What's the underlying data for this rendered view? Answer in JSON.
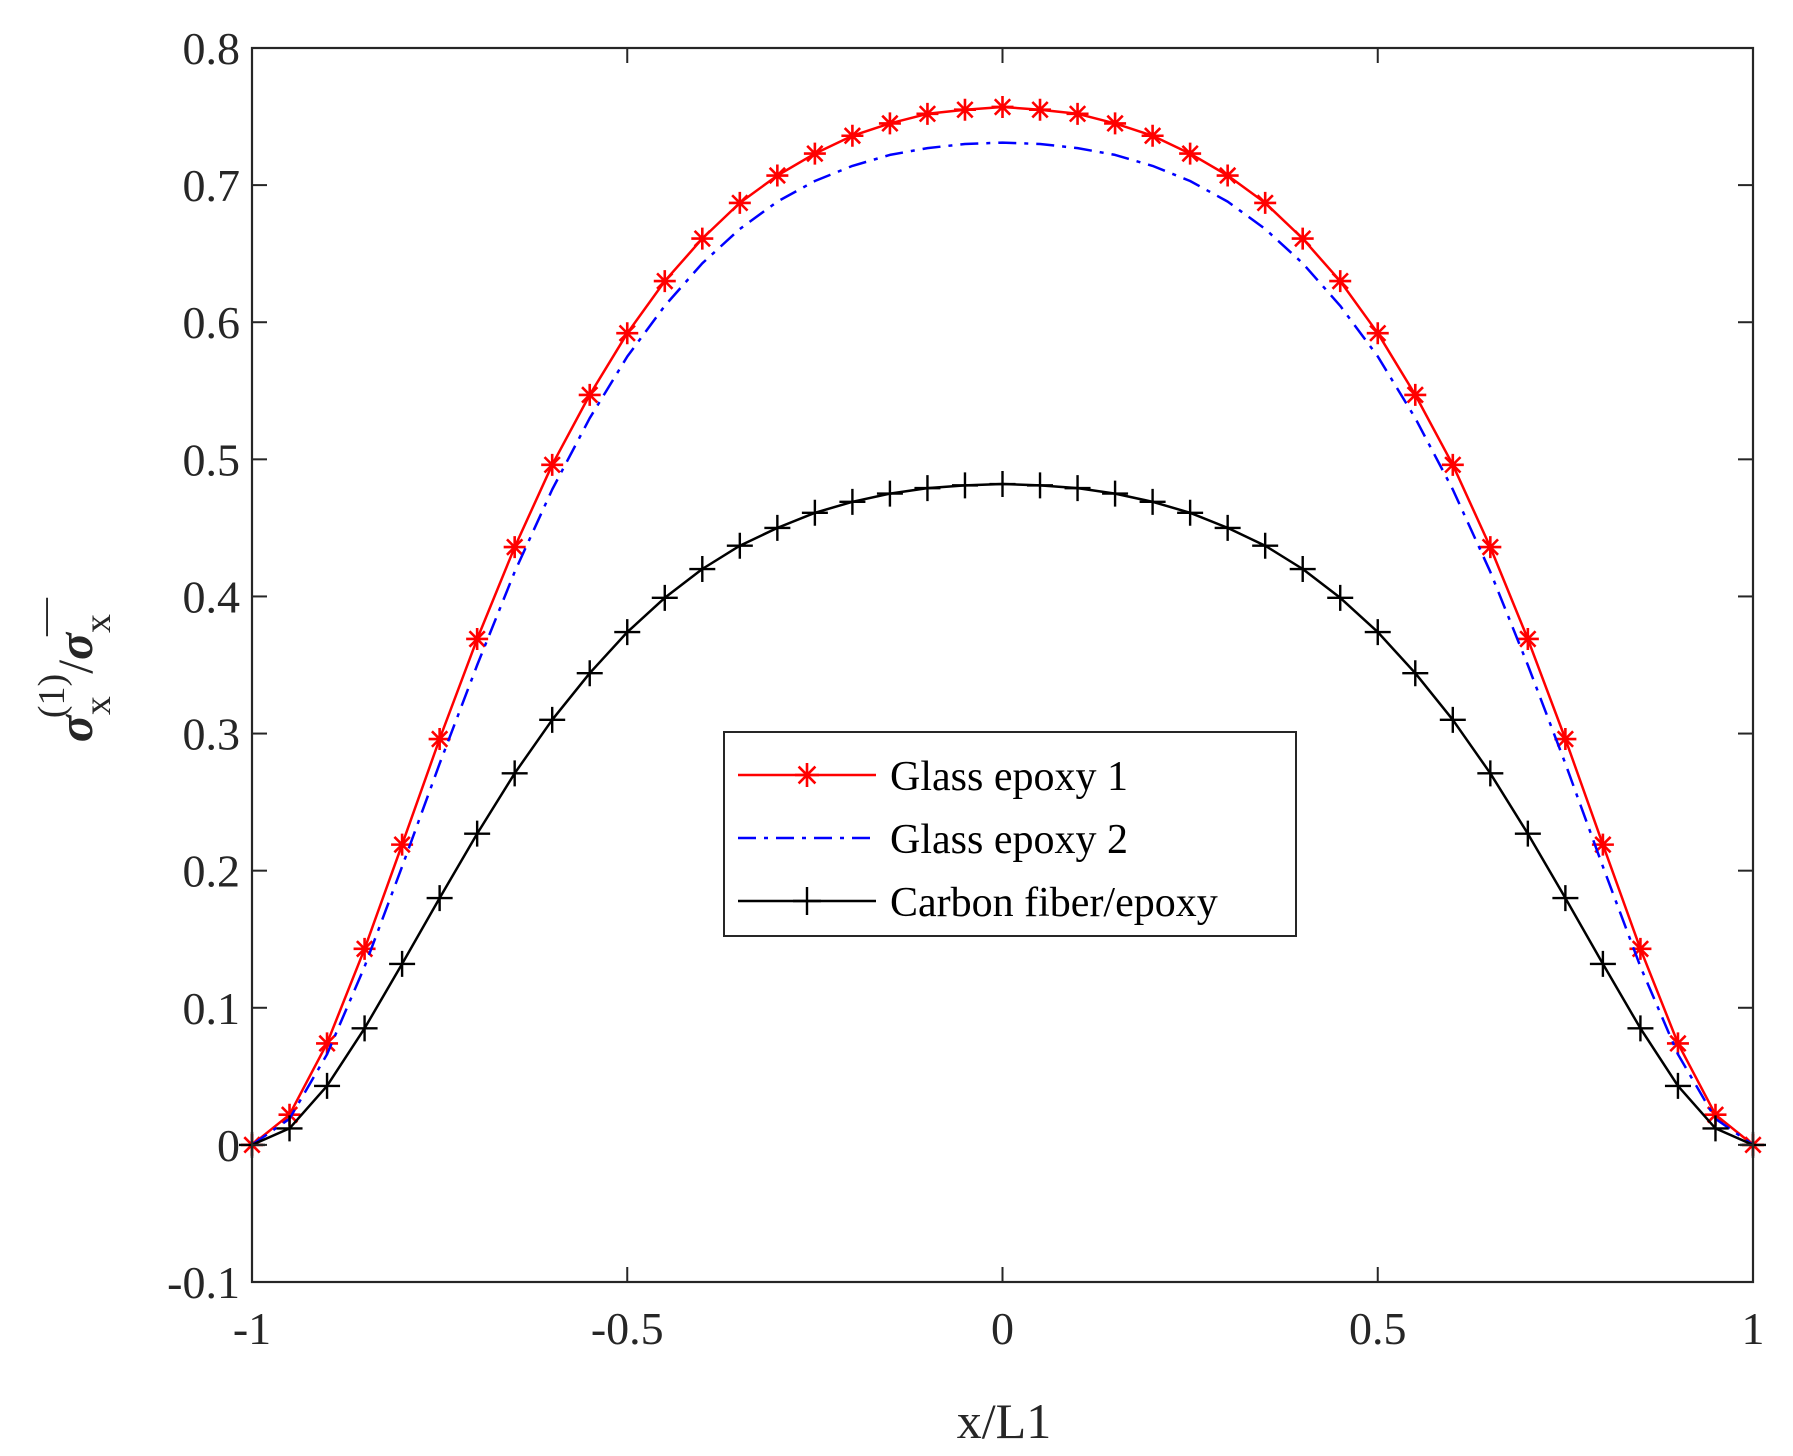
{
  "chart_data": {
    "type": "line",
    "title": "",
    "xlabel": "x/L1",
    "ylabel_parts": {
      "main": "σ",
      "sub": "x",
      "sup": "(1)",
      "slash": "/",
      "main2": "σ",
      "sub2": "x",
      "bar": "—"
    },
    "xlim": [
      -1,
      1
    ],
    "ylim": [
      -0.1,
      0.8
    ],
    "xticks": [
      -1,
      -0.5,
      0,
      0.5,
      1
    ],
    "xtick_labels": [
      "-1",
      "-0.5",
      "0",
      "0.5",
      "1"
    ],
    "yticks": [
      -0.1,
      0,
      0.1,
      0.2,
      0.3,
      0.4,
      0.5,
      0.6,
      0.7,
      0.8
    ],
    "ytick_labels": [
      "-0.1",
      "0",
      "0.1",
      "0.2",
      "0.3",
      "0.4",
      "0.5",
      "0.6",
      "0.7",
      "0.8"
    ],
    "grid": false,
    "legend_position": "center",
    "x": [
      -1,
      -0.95,
      -0.9,
      -0.85,
      -0.8,
      -0.75,
      -0.7,
      -0.65,
      -0.6,
      -0.55,
      -0.5,
      -0.45,
      -0.4,
      -0.35,
      -0.3,
      -0.25,
      -0.2,
      -0.15,
      -0.1,
      -0.05,
      0,
      0.05,
      0.1,
      0.15,
      0.2,
      0.25,
      0.3,
      0.35,
      0.4,
      0.45,
      0.5,
      0.55,
      0.6,
      0.65,
      0.7,
      0.75,
      0.8,
      0.85,
      0.9,
      0.95,
      1
    ],
    "series": [
      {
        "name": "Glass epoxy 1",
        "color": "#ff0000",
        "line": "solid",
        "marker": "asterisk",
        "values": [
          0,
          0.022,
          0.074,
          0.143,
          0.219,
          0.296,
          0.369,
          0.436,
          0.496,
          0.547,
          0.592,
          0.63,
          0.661,
          0.687,
          0.707,
          0.723,
          0.736,
          0.745,
          0.752,
          0.755,
          0.757,
          0.755,
          0.752,
          0.745,
          0.736,
          0.723,
          0.707,
          0.687,
          0.661,
          0.63,
          0.592,
          0.547,
          0.496,
          0.436,
          0.369,
          0.296,
          0.219,
          0.143,
          0.074,
          0.022,
          0
        ]
      },
      {
        "name": "Glass epoxy 2",
        "color": "#0000ff",
        "line": "dashdot",
        "marker": "none",
        "values": [
          0,
          0.019,
          0.066,
          0.13,
          0.203,
          0.278,
          0.35,
          0.418,
          0.478,
          0.53,
          0.575,
          0.612,
          0.643,
          0.668,
          0.688,
          0.703,
          0.714,
          0.722,
          0.727,
          0.73,
          0.731,
          0.73,
          0.727,
          0.722,
          0.714,
          0.703,
          0.688,
          0.668,
          0.643,
          0.612,
          0.575,
          0.53,
          0.478,
          0.418,
          0.35,
          0.278,
          0.203,
          0.13,
          0.066,
          0.019,
          0
        ]
      },
      {
        "name": "Carbon fiber/epoxy",
        "color": "#000000",
        "line": "solid",
        "marker": "plus",
        "values": [
          0,
          0.012,
          0.043,
          0.085,
          0.132,
          0.18,
          0.227,
          0.271,
          0.31,
          0.344,
          0.374,
          0.399,
          0.42,
          0.437,
          0.45,
          0.461,
          0.469,
          0.475,
          0.479,
          0.481,
          0.482,
          0.481,
          0.479,
          0.475,
          0.469,
          0.461,
          0.45,
          0.437,
          0.42,
          0.399,
          0.374,
          0.344,
          0.31,
          0.271,
          0.227,
          0.18,
          0.132,
          0.085,
          0.043,
          0.012,
          0
        ]
      }
    ]
  }
}
